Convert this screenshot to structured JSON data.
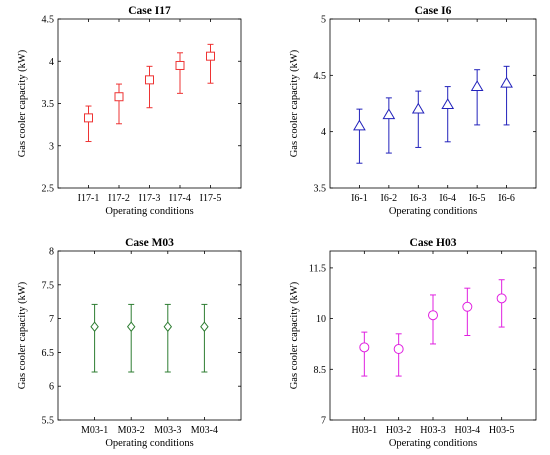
{
  "chart_data": [
    {
      "type": "errorbar",
      "title": "Case I17",
      "xlabel": "Operating conditions",
      "ylabel": "Gas cooler capacity (kW)",
      "categories": [
        "I17-1",
        "I17-2",
        "I17-3",
        "I17-4",
        "I17-5"
      ],
      "values": [
        3.33,
        3.58,
        3.78,
        3.95,
        4.06
      ],
      "lower": [
        3.05,
        3.26,
        3.45,
        3.62,
        3.74
      ],
      "upper": [
        3.47,
        3.73,
        3.94,
        4.1,
        4.2
      ],
      "ylim": [
        2.5,
        4.5
      ],
      "yticks": [
        "2.5",
        "3",
        "3.5",
        "4",
        "4.5"
      ],
      "marker": "square",
      "color": "#ee3333"
    },
    {
      "type": "errorbar",
      "title": "Case I6",
      "xlabel": "Operating conditions",
      "ylabel": "Gas cooler capacity (kW)",
      "categories": [
        "I6-1",
        "I6-2",
        "I6-3",
        "I6-4",
        "I6-5",
        "I6-6"
      ],
      "values": [
        4.05,
        4.15,
        4.2,
        4.24,
        4.4,
        4.43
      ],
      "lower": [
        3.72,
        3.81,
        3.86,
        3.91,
        4.06,
        4.06
      ],
      "upper": [
        4.2,
        4.3,
        4.36,
        4.4,
        4.55,
        4.58
      ],
      "ylim": [
        3.5,
        5
      ],
      "yticks": [
        "3.5",
        "4",
        "4.5",
        "5"
      ],
      "marker": "triangle",
      "color": "#2222bb"
    },
    {
      "type": "errorbar",
      "title": "Case M03",
      "xlabel": "Operating conditions",
      "ylabel": "Gas cooler capacity (kW)",
      "categories": [
        "M03-1",
        "M03-2",
        "M03-3",
        "M03-4"
      ],
      "values": [
        6.88,
        6.88,
        6.88,
        6.88
      ],
      "lower": [
        6.21,
        6.21,
        6.21,
        6.21
      ],
      "upper": [
        7.21,
        7.21,
        7.21,
        7.21
      ],
      "ylim": [
        5.5,
        8
      ],
      "yticks": [
        "5.5",
        "6",
        "6.5",
        "7",
        "7.5",
        "8"
      ],
      "marker": "diamond",
      "color": "#2e7d32"
    },
    {
      "type": "errorbar",
      "title": "Case H03",
      "xlabel": "Operating conditions",
      "ylabel": "Gas cooler capacity (kW)",
      "categories": [
        "H03-1",
        "H03-2",
        "H03-3",
        "H03-4",
        "H03-5"
      ],
      "values": [
        9.15,
        9.1,
        10.1,
        10.35,
        10.6
      ],
      "lower": [
        8.3,
        8.3,
        9.25,
        9.5,
        9.75
      ],
      "upper": [
        9.6,
        9.55,
        10.7,
        10.9,
        11.15
      ],
      "ylim": [
        7,
        12
      ],
      "yticks": [
        "7",
        "8.5",
        "10",
        "11.5"
      ],
      "yticks_values": [
        7,
        8.5,
        10,
        11.5
      ],
      "marker": "circle",
      "color": "#e020e0"
    }
  ]
}
